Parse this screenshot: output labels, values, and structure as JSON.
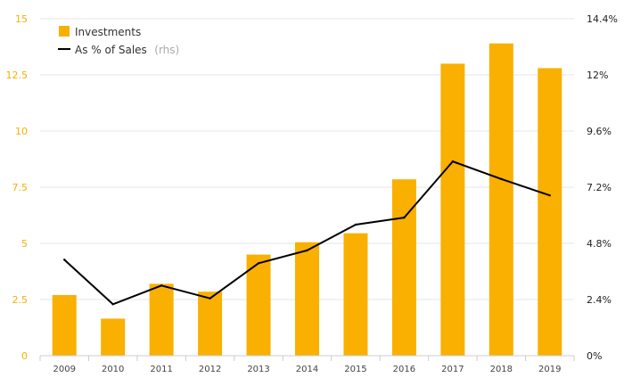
{
  "chart_data": {
    "type": "bar",
    "categories": [
      "2009",
      "2010",
      "2011",
      "2012",
      "2013",
      "2014",
      "2015",
      "2016",
      "2017",
      "2018",
      "2019"
    ],
    "series": [
      {
        "name": "Investments",
        "type": "bar",
        "axis": "left",
        "color": "#f9b000",
        "values": [
          2.7,
          1.65,
          3.2,
          2.85,
          4.5,
          5.05,
          5.45,
          7.85,
          13.0,
          13.9,
          12.8
        ]
      },
      {
        "name": "As % of Sales",
        "name_note": "(rhs)",
        "type": "line",
        "axis": "right",
        "color": "#000000",
        "values": [
          4.1,
          2.2,
          3.0,
          2.45,
          3.95,
          4.5,
          5.6,
          5.9,
          8.3,
          7.55,
          6.85
        ]
      }
    ],
    "y_left": {
      "ylim": [
        0,
        15
      ],
      "ticks": [
        "0",
        "2.5",
        "5",
        "7.5",
        "10",
        "12.5",
        "15"
      ],
      "tick_color": "#f2b100"
    },
    "y_right": {
      "ylim": [
        0,
        14.4
      ],
      "ticks": [
        "0%",
        "2.4%",
        "4.8%",
        "7.2%",
        "9.6%",
        "12%",
        "14.4%"
      ]
    },
    "grid": true,
    "legend_position": "top-left"
  }
}
